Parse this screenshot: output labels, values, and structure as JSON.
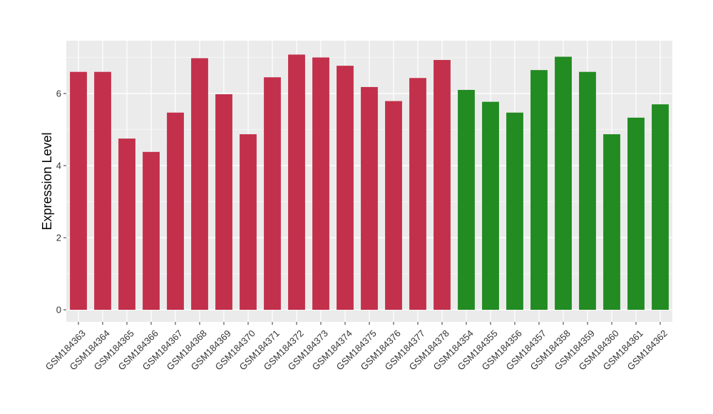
{
  "chart_data": {
    "type": "bar",
    "title": "",
    "xlabel": "",
    "ylabel": "Expression Level",
    "ylim": [
      0,
      7.4
    ],
    "yticks": [
      0,
      2,
      4,
      6
    ],
    "grid": true,
    "categories": [
      "GSM184363",
      "GSM184364",
      "GSM184365",
      "GSM184366",
      "GSM184367",
      "GSM184368",
      "GSM184369",
      "GSM184370",
      "GSM184371",
      "GSM184372",
      "GSM184373",
      "GSM184374",
      "GSM184375",
      "GSM184376",
      "GSM184377",
      "GSM184378",
      "GSM184354",
      "GSM184355",
      "GSM184356",
      "GSM184357",
      "GSM184358",
      "GSM184359",
      "GSM184360",
      "GSM184361",
      "GSM184362"
    ],
    "values": [
      6.6,
      6.6,
      4.75,
      4.38,
      5.47,
      6.98,
      5.98,
      4.87,
      6.45,
      7.08,
      7.0,
      6.77,
      6.18,
      5.79,
      6.43,
      6.93,
      6.1,
      5.77,
      5.47,
      6.65,
      7.02,
      6.6,
      4.87,
      5.33,
      5.7
    ],
    "groups": [
      "red",
      "red",
      "red",
      "red",
      "red",
      "red",
      "red",
      "red",
      "red",
      "red",
      "red",
      "red",
      "red",
      "red",
      "red",
      "red",
      "green",
      "green",
      "green",
      "green",
      "green",
      "green",
      "green",
      "green",
      "green"
    ],
    "colors": {
      "red": "#C3304B",
      "green": "#228B22"
    },
    "panel_background": "#EBEBEB",
    "grid_color": "#FFFFFF"
  }
}
